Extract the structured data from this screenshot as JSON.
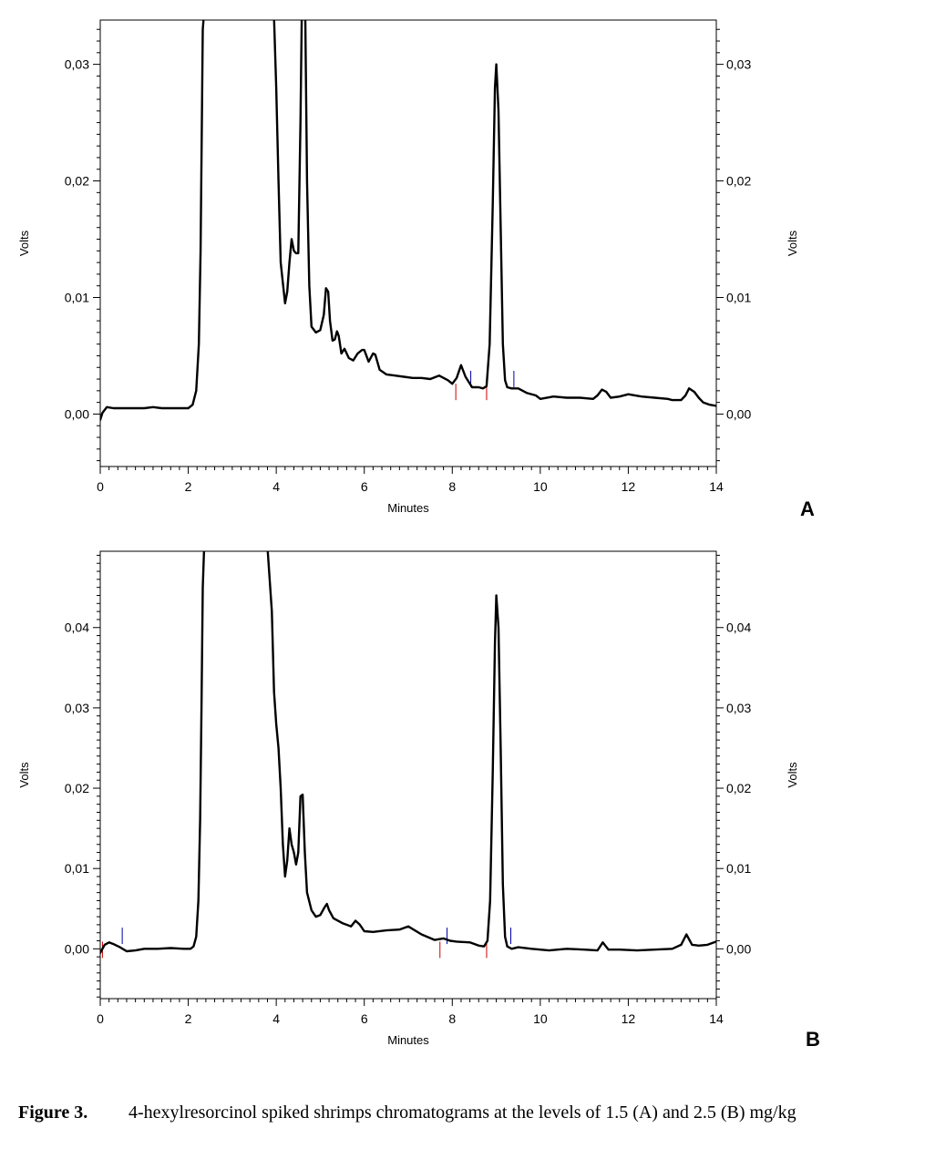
{
  "chart_data": [
    {
      "type": "line",
      "panel_label": "A",
      "xlabel": "Minutes",
      "ylabel": "Volts",
      "ylabel_right": "Volts",
      "xlim": [
        0,
        14
      ],
      "ylim": [
        -0.0045,
        0.0338
      ],
      "x_ticks": [
        "0",
        "2",
        "4",
        "6",
        "8",
        "10",
        "12",
        "14"
      ],
      "y_ticks": [
        "0,00",
        "0,01",
        "0,02",
        "0,03"
      ],
      "grid": false,
      "series": [
        {
          "color": "#000000",
          "x": [
            0.0,
            0.05,
            0.15,
            0.3,
            0.5,
            0.8,
            1.0,
            1.2,
            1.4,
            1.6,
            1.8,
            2.0,
            2.1,
            2.18,
            2.24,
            2.28,
            2.31,
            2.33,
            2.35,
            3.95,
            4.0,
            4.05,
            4.1,
            4.2,
            4.25,
            4.3,
            4.35,
            4.4,
            4.45,
            4.5,
            4.55,
            4.58,
            4.62,
            4.66,
            4.7,
            4.75,
            4.8,
            4.9,
            5.0,
            5.08,
            5.13,
            5.18,
            5.22,
            5.28,
            5.33,
            5.38,
            5.42,
            5.48,
            5.55,
            5.65,
            5.75,
            5.85,
            5.95,
            6.0,
            6.1,
            6.2,
            6.25,
            6.35,
            6.5,
            6.7,
            6.9,
            7.1,
            7.3,
            7.5,
            7.7,
            7.9,
            8.0,
            8.1,
            8.2,
            8.3,
            8.45,
            8.6,
            8.7,
            8.78,
            8.85,
            8.92,
            8.97,
            9.0,
            9.05,
            9.1,
            9.15,
            9.2,
            9.25,
            9.35,
            9.5,
            9.7,
            9.9,
            10.0,
            10.3,
            10.6,
            10.9,
            11.2,
            11.3,
            11.4,
            11.5,
            11.6,
            11.8,
            12.0,
            12.3,
            12.6,
            12.9,
            13.0,
            13.2,
            13.3,
            13.38,
            13.5,
            13.6,
            13.7,
            13.85,
            14.0
          ],
          "y": [
            -0.0005,
            0.0001,
            0.0006,
            0.0005,
            0.0005,
            0.0005,
            0.0005,
            0.0006,
            0.0005,
            0.0005,
            0.0005,
            0.0005,
            0.0008,
            0.002,
            0.006,
            0.014,
            0.025,
            0.033,
            0.034,
            0.034,
            0.028,
            0.02,
            0.013,
            0.0095,
            0.0105,
            0.013,
            0.015,
            0.014,
            0.0138,
            0.0138,
            0.025,
            0.034,
            0.034,
            0.034,
            0.02,
            0.011,
            0.0075,
            0.007,
            0.0072,
            0.0085,
            0.0108,
            0.0105,
            0.008,
            0.0063,
            0.0064,
            0.0071,
            0.0067,
            0.0052,
            0.0056,
            0.0048,
            0.0046,
            0.0052,
            0.0055,
            0.0055,
            0.0045,
            0.0052,
            0.0051,
            0.0038,
            0.0034,
            0.0033,
            0.0032,
            0.0031,
            0.0031,
            0.003,
            0.0033,
            0.0029,
            0.0026,
            0.0031,
            0.0042,
            0.0032,
            0.0023,
            0.0023,
            0.0022,
            0.0024,
            0.006,
            0.018,
            0.028,
            0.03,
            0.026,
            0.016,
            0.006,
            0.0029,
            0.0023,
            0.0022,
            0.0022,
            0.0018,
            0.0016,
            0.0013,
            0.0015,
            0.0014,
            0.0014,
            0.0013,
            0.0016,
            0.0021,
            0.0019,
            0.0014,
            0.0015,
            0.0017,
            0.0015,
            0.0014,
            0.0013,
            0.0012,
            0.0012,
            0.0016,
            0.0022,
            0.0019,
            0.0014,
            0.001,
            0.0008,
            0.0007
          ]
        }
      ],
      "markers": [
        {
          "x": 8.08,
          "color": "#cc0000",
          "dir": "down"
        },
        {
          "x": 8.42,
          "color": "#0000aa",
          "dir": "up"
        },
        {
          "x": 8.78,
          "color": "#cc0000",
          "dir": "down"
        },
        {
          "x": 9.4,
          "color": "#0000aa",
          "dir": "up"
        }
      ]
    },
    {
      "type": "line",
      "panel_label": "B",
      "xlabel": "Minutes",
      "ylabel": "Volts",
      "ylabel_right": "Volts",
      "xlim": [
        0,
        14
      ],
      "ylim": [
        -0.0062,
        0.0495
      ],
      "x_ticks": [
        "0",
        "2",
        "4",
        "6",
        "8",
        "10",
        "12",
        "14"
      ],
      "y_ticks": [
        "0,00",
        "0,01",
        "0,02",
        "0,03",
        "0,04"
      ],
      "grid": false,
      "series": [
        {
          "color": "#000000",
          "x": [
            0.0,
            0.1,
            0.2,
            0.3,
            0.45,
            0.6,
            0.8,
            1.0,
            1.3,
            1.6,
            1.9,
            2.05,
            2.12,
            2.18,
            2.23,
            2.27,
            2.3,
            2.33,
            2.36,
            3.8,
            3.9,
            3.95,
            4.0,
            4.05,
            4.1,
            4.15,
            4.2,
            4.25,
            4.3,
            4.35,
            4.4,
            4.45,
            4.5,
            4.55,
            4.6,
            4.65,
            4.7,
            4.8,
            4.9,
            5.0,
            5.1,
            5.15,
            5.2,
            5.3,
            5.5,
            5.7,
            5.8,
            5.9,
            6.0,
            6.2,
            6.5,
            6.8,
            7.0,
            7.3,
            7.6,
            7.8,
            7.95,
            8.1,
            8.4,
            8.6,
            8.72,
            8.8,
            8.86,
            8.92,
            8.97,
            9.0,
            9.05,
            9.1,
            9.15,
            9.2,
            9.25,
            9.35,
            9.5,
            9.8,
            10.2,
            10.6,
            11.0,
            11.3,
            11.42,
            11.55,
            11.8,
            12.2,
            12.6,
            13.0,
            13.2,
            13.32,
            13.45,
            13.6,
            13.8,
            14.0
          ],
          "y": [
            -0.0005,
            0.0005,
            0.0008,
            0.0006,
            0.0002,
            -0.0003,
            -0.0002,
            0.0,
            0.0,
            0.0001,
            0.0,
            0.0,
            0.0003,
            0.0015,
            0.006,
            0.016,
            0.03,
            0.045,
            0.05,
            0.05,
            0.042,
            0.032,
            0.028,
            0.025,
            0.02,
            0.013,
            0.009,
            0.011,
            0.015,
            0.013,
            0.012,
            0.0105,
            0.012,
            0.019,
            0.0192,
            0.012,
            0.007,
            0.0048,
            0.004,
            0.0042,
            0.0052,
            0.0056,
            0.0048,
            0.0038,
            0.0032,
            0.0028,
            0.0035,
            0.003,
            0.0022,
            0.0021,
            0.0023,
            0.0024,
            0.0028,
            0.0018,
            0.0011,
            0.0013,
            0.001,
            0.0009,
            0.0008,
            0.0004,
            0.0003,
            0.001,
            0.006,
            0.022,
            0.038,
            0.044,
            0.04,
            0.025,
            0.008,
            0.0015,
            0.0003,
            0.0,
            0.0002,
            0.0,
            -0.0002,
            0.0,
            -0.0001,
            -0.0002,
            0.0008,
            -0.0001,
            -0.0001,
            -0.0002,
            -0.0001,
            0.0,
            0.0005,
            0.0018,
            0.0005,
            0.0004,
            0.0005,
            0.0009
          ]
        }
      ],
      "markers": [
        {
          "x": 0.05,
          "color": "#cc0000",
          "dir": "down"
        },
        {
          "x": 0.5,
          "color": "#0000aa",
          "dir": "up"
        },
        {
          "x": 7.72,
          "color": "#cc0000",
          "dir": "down"
        },
        {
          "x": 7.88,
          "color": "#0000aa",
          "dir": "up"
        },
        {
          "x": 8.78,
          "color": "#cc0000",
          "dir": "down"
        },
        {
          "x": 9.33,
          "color": "#0000aa",
          "dir": "up"
        }
      ]
    }
  ],
  "caption": {
    "label": "Figure 3.",
    "text": "4-hexylresorcinol spiked shrimps chromatograms at the levels of 1.5 (A) and 2.5 (B) mg/kg"
  }
}
